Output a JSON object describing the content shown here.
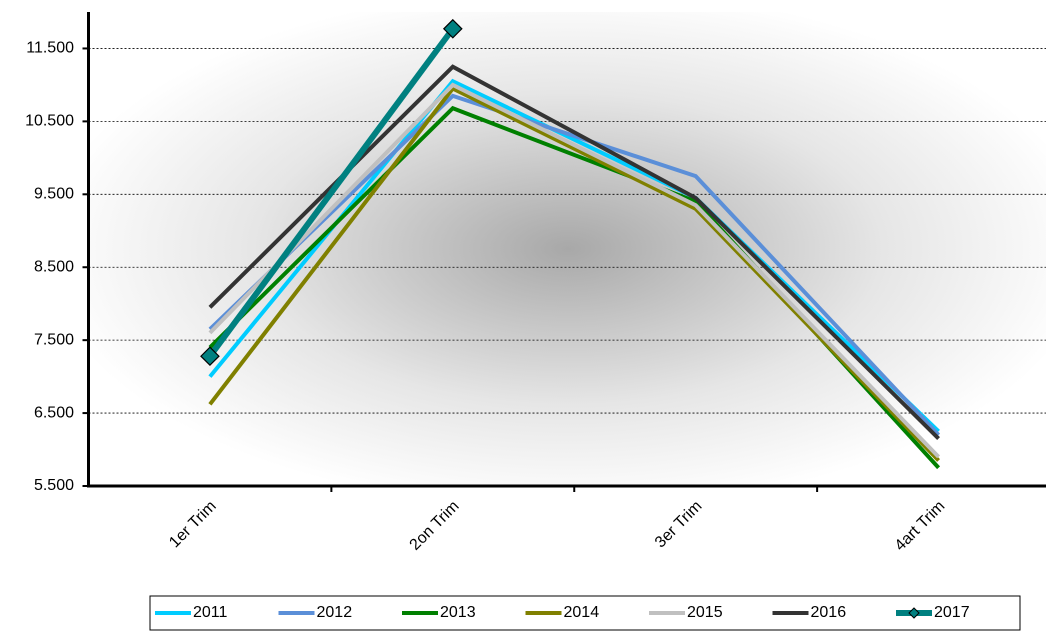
{
  "chart_data": {
    "type": "line",
    "categories": [
      "1er Trim",
      "2on Trim",
      "3er Trim",
      "4art Trim"
    ],
    "series": [
      {
        "name": "2011",
        "color": "#00ccff",
        "values": [
          7000,
          11050,
          9450,
          6250
        ]
      },
      {
        "name": "2012",
        "color": "#5b8fd8",
        "values": [
          7650,
          10850,
          9750,
          6200
        ]
      },
      {
        "name": "2013",
        "color": "#008000",
        "values": [
          7400,
          10680,
          9400,
          5750
        ]
      },
      {
        "name": "2014",
        "color": "#808000",
        "values": [
          6620,
          10950,
          9300,
          5850
        ]
      },
      {
        "name": "2015",
        "color": "#c0c0c0",
        "values": [
          7600,
          11000,
          9350,
          5900
        ]
      },
      {
        "name": "2016",
        "color": "#333333",
        "values": [
          7950,
          11250,
          9450,
          6150
        ]
      },
      {
        "name": "2017",
        "color": "#008080",
        "values": [
          7280,
          11770,
          null,
          null
        ],
        "marker": "diamond"
      }
    ],
    "ylim": [
      5500,
      12000
    ],
    "yticks": [
      {
        "value": 5500,
        "label": "5.500"
      },
      {
        "value": 6500,
        "label": "6.500"
      },
      {
        "value": 7500,
        "label": "7.500"
      },
      {
        "value": 8500,
        "label": "8.500"
      },
      {
        "value": 9500,
        "label": "9.500"
      },
      {
        "value": 10500,
        "label": "10.500"
      },
      {
        "value": 11500,
        "label": "11.500"
      }
    ],
    "grid": true,
    "legend": "bottom"
  }
}
